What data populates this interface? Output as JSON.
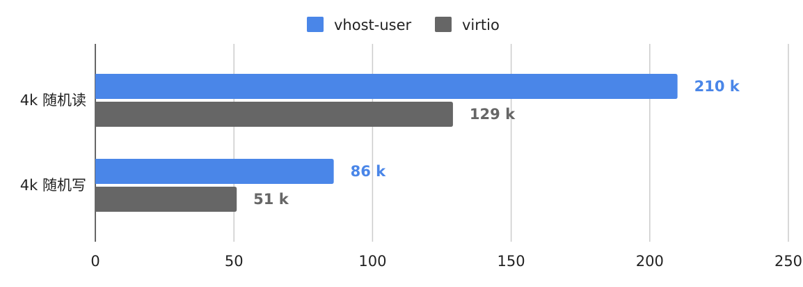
{
  "chart_data": {
    "type": "bar",
    "orientation": "horizontal",
    "categories": [
      "4k 随机读",
      "4k 随机写"
    ],
    "series": [
      {
        "name": "vhost-user",
        "values": [
          210,
          86
        ],
        "labels": [
          "210 k",
          "86 k"
        ],
        "color": "#4a86e8"
      },
      {
        "name": "virtio",
        "values": [
          129,
          51
        ],
        "labels": [
          "129 k",
          "51 k"
        ],
        "color": "#666666"
      }
    ],
    "xlim": [
      0,
      250
    ],
    "xticks": [
      0,
      50,
      100,
      150,
      200,
      250
    ],
    "xtick_labels": [
      "0",
      "50",
      "100",
      "150",
      "200",
      "250"
    ],
    "grid": true,
    "legend_position": "top-center",
    "title": "",
    "xlabel": "",
    "ylabel": ""
  }
}
